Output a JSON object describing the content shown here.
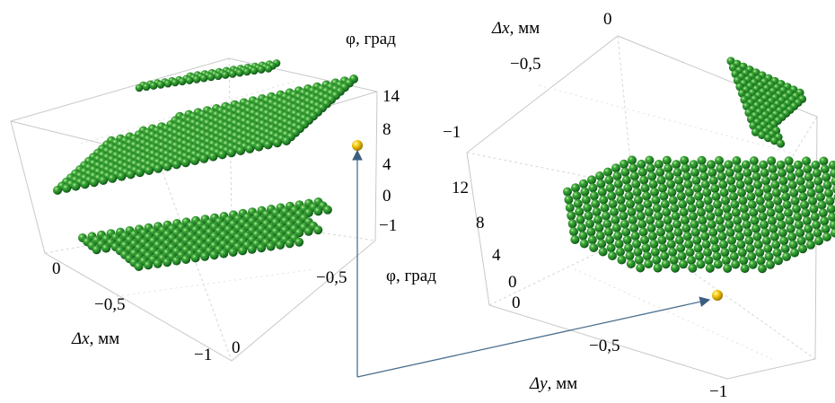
{
  "left_plot": {
    "phi_axis_title": "φ, град",
    "phi_ticks": [
      "14",
      "8",
      "4",
      "0",
      "−1"
    ],
    "dx_axis_title_sym": "Δx",
    "dx_axis_title_unit": ", мм",
    "dx_ticks": [
      "0",
      "−0,5",
      "−1"
    ],
    "dy_ticks": [
      "0",
      "−0,5"
    ],
    "marker_label": "φ, град"
  },
  "right_plot": {
    "dx_axis_title_sym": "Δx",
    "dx_axis_title_unit": ", мм",
    "dx_ticks": [
      "0",
      "−0,5",
      "−1"
    ],
    "phi_ticks": [
      "12",
      "8",
      "4",
      "0"
    ],
    "dy_axis_title_sym": "Δy",
    "dy_axis_title_unit": ", мм",
    "dy_ticks": [
      "0",
      "−0,5",
      "−1"
    ]
  },
  "colors": {
    "sphere": "#2e8f2e",
    "sphere_highlight": "#8ce07a",
    "sphere_shadow": "#0d4a12",
    "marker": "#f2c400",
    "arrow": "#4a6f8f",
    "box": "#b9b9b9"
  }
}
